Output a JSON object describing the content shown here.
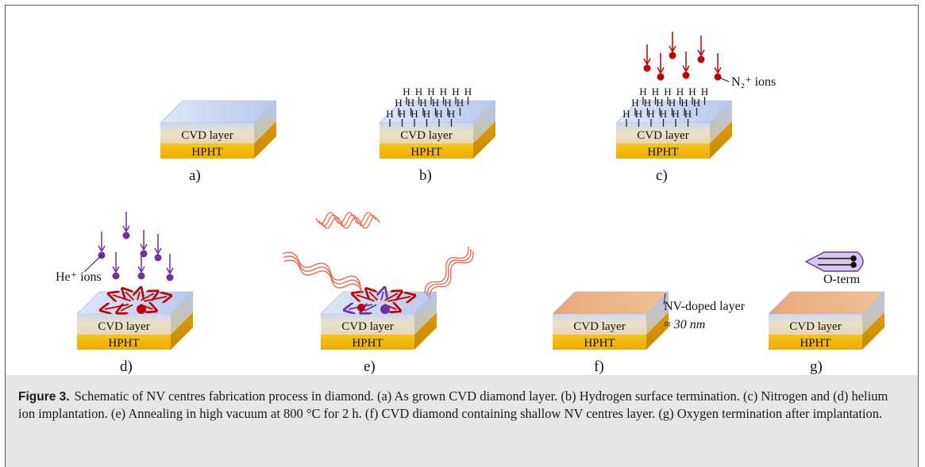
{
  "labels": {
    "cvd": "CVD layer",
    "hpht": "HPHT",
    "h": "H",
    "n2_ions": "N₂⁺ ions",
    "he_ions": "He⁺ ions",
    "nv_layer": "NV-doped layer",
    "nv_depth": "≈ 30 nm",
    "oterm": "O-term"
  },
  "panels": {
    "a": "a)",
    "b": "b)",
    "c": "c)",
    "d": "d)",
    "e": "e)",
    "f": "f)",
    "g": "g)"
  },
  "caption": {
    "label": "Figure 3.",
    "text": "Schematic of NV centres fabrication process in diamond. (a) As grown CVD diamond layer. (b) Hydrogen surface termination. (c) Nitrogen and (d) helium ion implantation. (e) Annealing in high vacuum at 800 °C for 2 h. (f) CVD diamond containing shallow NV centres layer. (g) Oxygen termination after implantation."
  },
  "colors": {
    "hpht": "#f2b400",
    "cvd": "#ede0c4",
    "top_blue": "#c7d5ef",
    "nitrogen": "#c00000",
    "helium": "#7030a0",
    "heat_wave": "#f06040",
    "nv_layer": "#e9b483"
  },
  "icons": [
    "down-arrow-icon",
    "ion-dot-icon",
    "heat-wave-icon",
    "oxygen-molecule-icon"
  ]
}
